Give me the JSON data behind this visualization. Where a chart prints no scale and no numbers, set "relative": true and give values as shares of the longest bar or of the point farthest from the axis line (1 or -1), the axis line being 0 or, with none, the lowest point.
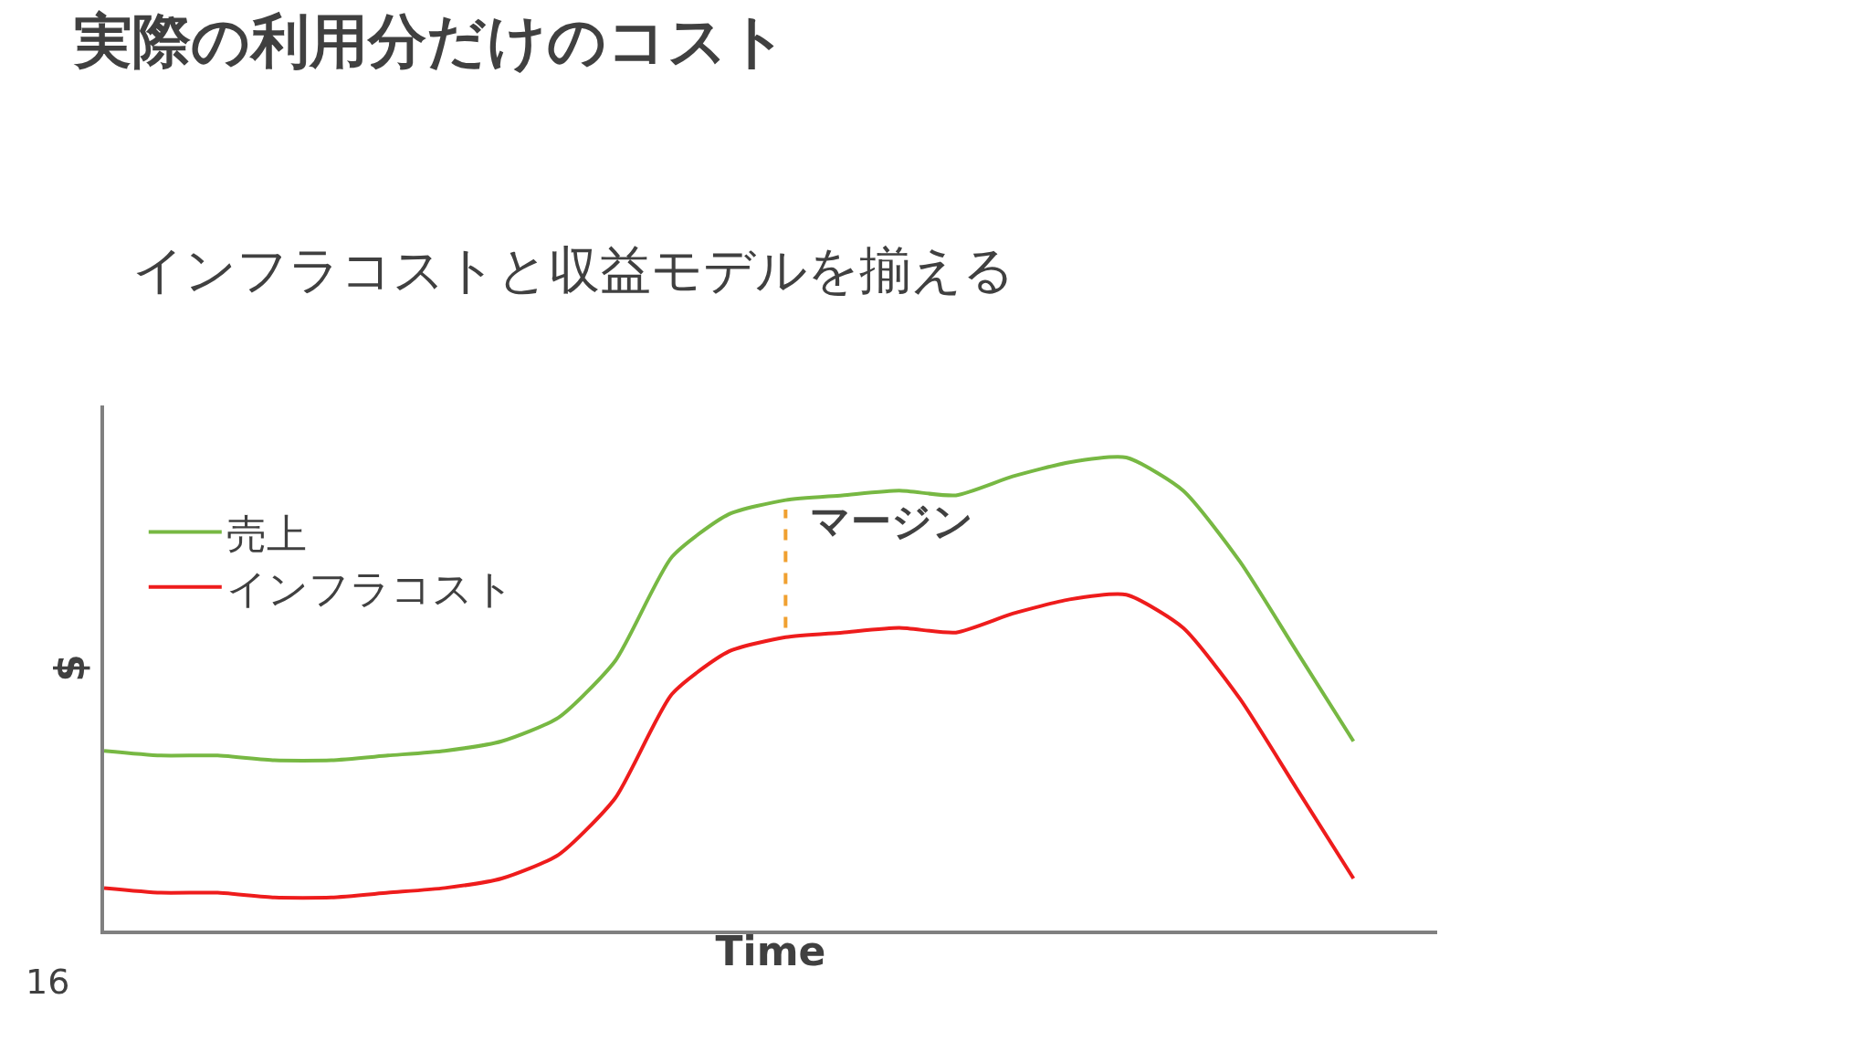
{
  "chart_data": {
    "type": "line",
    "title": "実際の利用分だけのコスト",
    "subtitle": "インフラコストと収益モデルを揃える",
    "xlabel": "Time",
    "ylabel": "$",
    "relative": true,
    "legend": "top left",
    "marker": "none",
    "categories": [
      null,
      null,
      null,
      null,
      null,
      null,
      null,
      null,
      null,
      null,
      null,
      null,
      null,
      null,
      null,
      null,
      null,
      null,
      null,
      null,
      null,
      null,
      null
    ],
    "series": [
      {
        "name": "売上",
        "color": "#77b843",
        "values": [
          0.38,
          0.37,
          0.37,
          0.36,
          0.36,
          0.37,
          0.38,
          0.4,
          0.45,
          0.57,
          0.79,
          0.88,
          0.91,
          0.92,
          0.93,
          0.92,
          0.96,
          0.99,
          1.0,
          0.93,
          0.78,
          0.59,
          0.4
        ]
      },
      {
        "name": "インフラコスト",
        "color": "#ee1c1c",
        "values": [
          0.09,
          0.08,
          0.08,
          0.07,
          0.07,
          0.08,
          0.09,
          0.11,
          0.16,
          0.28,
          0.5,
          0.59,
          0.62,
          0.63,
          0.64,
          0.63,
          0.67,
          0.7,
          0.71,
          0.64,
          0.49,
          0.3,
          0.11
        ]
      }
    ],
    "annotations": [
      "マージン",
      "16"
    ]
  }
}
